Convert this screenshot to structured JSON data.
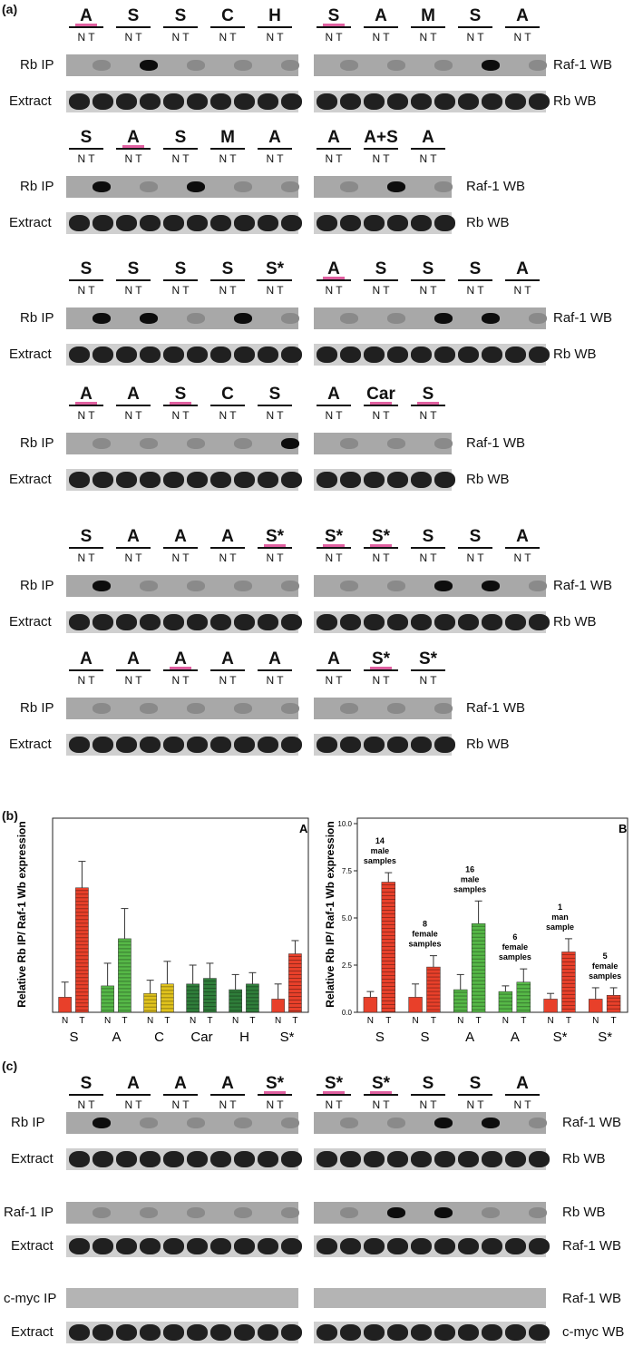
{
  "panel_a": {
    "label": "(a)",
    "row_label_ip": "Rb IP",
    "row_label_extract": "Extract",
    "right_label_ip": "Raf-1 WB",
    "right_label_extract": "Rb WB",
    "lane_sublabel": "N T",
    "blots": [
      {
        "groups": [
          [
            "A",
            "S",
            "S",
            "C",
            "H"
          ],
          [
            "S",
            "A",
            "M",
            "S",
            "A"
          ]
        ],
        "pink": [
          [
            0
          ],
          [
            0
          ]
        ],
        "strong": [
          [
            1
          ],
          [
            3
          ]
        ],
        "y": 8
      },
      {
        "groups": [
          [
            "S",
            "A",
            "S",
            "M",
            "A"
          ],
          [
            "A",
            "A+S",
            "A"
          ]
        ],
        "pink": [
          [
            1
          ],
          []
        ],
        "strong": [
          [
            0,
            2
          ],
          [
            1
          ]
        ],
        "y": 142
      },
      {
        "groups": [
          [
            "S",
            "S",
            "S",
            "S",
            "S*"
          ],
          [
            "A",
            "S",
            "S",
            "S",
            "A"
          ]
        ],
        "pink": [
          [],
          [
            0
          ]
        ],
        "strong": [
          [
            0,
            1,
            3
          ],
          [
            2,
            3
          ]
        ],
        "y": 287
      },
      {
        "groups": [
          [
            "A",
            "A",
            "S",
            "C",
            "S"
          ],
          [
            "A",
            "Car",
            "S"
          ]
        ],
        "pink": [
          [
            0,
            2
          ],
          [
            1,
            2
          ]
        ],
        "strong": [
          [
            4
          ],
          []
        ],
        "y": 425
      },
      {
        "groups": [
          [
            "S",
            "A",
            "A",
            "A",
            "S*"
          ],
          [
            "S*",
            "S*",
            "S",
            "S",
            "A"
          ]
        ],
        "pink": [
          [
            4
          ],
          [
            0,
            1
          ]
        ],
        "strong": [
          [
            0
          ],
          [
            2,
            3
          ]
        ],
        "y": 582
      },
      {
        "groups": [
          [
            "A",
            "A",
            "A",
            "A",
            "A"
          ],
          [
            "A",
            "S*",
            "S*"
          ]
        ],
        "pink": [
          [
            2
          ],
          [
            1
          ]
        ],
        "strong": [
          [],
          []
        ],
        "y": 717
      }
    ]
  },
  "panel_b": {
    "label": "(b)",
    "ylabel": "Relative Rb IP/ Raf-1 Wb expression",
    "tick_labels": [
      "0.0",
      "2.5",
      "5.0",
      "7.5",
      "10.0"
    ],
    "chart_data": [
      {
        "type": "bar",
        "title": "A",
        "ylabel": "Relative Rb IP/ Raf-1 Wb expression",
        "ylim": [
          0,
          10
        ],
        "categories": [
          "S",
          "A",
          "C",
          "Car",
          "H",
          "S*"
        ],
        "sublabels": [
          "N",
          "T"
        ],
        "series": [
          {
            "values_N": [
              0.8,
              1.4,
              1.0,
              1.5,
              1.2,
              0.7
            ],
            "values_T": [
              6.6,
              3.9,
              1.5,
              1.8,
              1.5,
              3.1
            ]
          }
        ],
        "errors_N": [
          0.8,
          1.2,
          0.7,
          1.0,
          0.8,
          0.8
        ],
        "errors_T": [
          1.4,
          1.6,
          1.2,
          0.8,
          0.6,
          0.7
        ],
        "colors": [
          "#e8402a",
          "#56b847",
          "#e0c21c",
          "#2f7d3a",
          "#2f7d3a",
          "#e8402a"
        ]
      },
      {
        "type": "bar",
        "title": "B",
        "ylim": [
          0,
          10
        ],
        "tick_labels": [
          "0.0",
          "2.5",
          "5.0",
          "7.5",
          "10.0"
        ],
        "categories": [
          "S",
          "S",
          "A",
          "A",
          "S*",
          "S*"
        ],
        "sublabels": [
          "N",
          "T"
        ],
        "series": [
          {
            "values_N": [
              0.8,
              0.8,
              1.2,
              1.1,
              0.7,
              0.7
            ],
            "values_T": [
              6.9,
              2.4,
              4.7,
              1.6,
              3.2,
              0.9
            ]
          }
        ],
        "errors_N": [
          0.3,
          0.7,
          0.8,
          0.3,
          0.3,
          0.6
        ],
        "errors_T": [
          0.5,
          0.6,
          1.2,
          0.7,
          0.7,
          0.4
        ],
        "annotations": [
          "14 male samples",
          "8 female samples",
          "16 male samples",
          "6 female samples",
          "1 man sample",
          "5 female samples"
        ],
        "colors": [
          "#e8402a",
          "#e8402a",
          "#56b847",
          "#56b847",
          "#e8402a",
          "#e8402a"
        ]
      }
    ]
  },
  "panel_c": {
    "label": "(c)",
    "groups": [
      [
        "S",
        "A",
        "A",
        "A",
        "S*"
      ],
      [
        "S*",
        "S*",
        "S",
        "S",
        "A"
      ]
    ],
    "pink": [
      [
        4
      ],
      [
        0,
        1
      ]
    ],
    "rows": [
      {
        "left": "Rb IP",
        "right": "Raf-1 WB",
        "kind": "ip",
        "strong": [
          [
            0
          ],
          [
            2,
            3
          ]
        ]
      },
      {
        "left": "Extract",
        "right": "Rb WB",
        "kind": "ex"
      },
      {
        "left": "Raf-1 IP",
        "right": "Rb  WB",
        "kind": "ip",
        "strong": [
          [],
          [
            1,
            2
          ]
        ]
      },
      {
        "left": "Extract",
        "right": "Raf-1 WB",
        "kind": "ex"
      },
      {
        "left": "c-myc IP",
        "right": "Raf-1 WB",
        "kind": "ipw"
      },
      {
        "left": "Extract",
        "right": "c-myc WB",
        "kind": "ex"
      }
    ]
  },
  "colors": {
    "pink": "#e05fa0",
    "red": "#e8402a",
    "green": "#56b847",
    "yellow": "#e0c21c",
    "darkgreen": "#2f7d3a"
  }
}
